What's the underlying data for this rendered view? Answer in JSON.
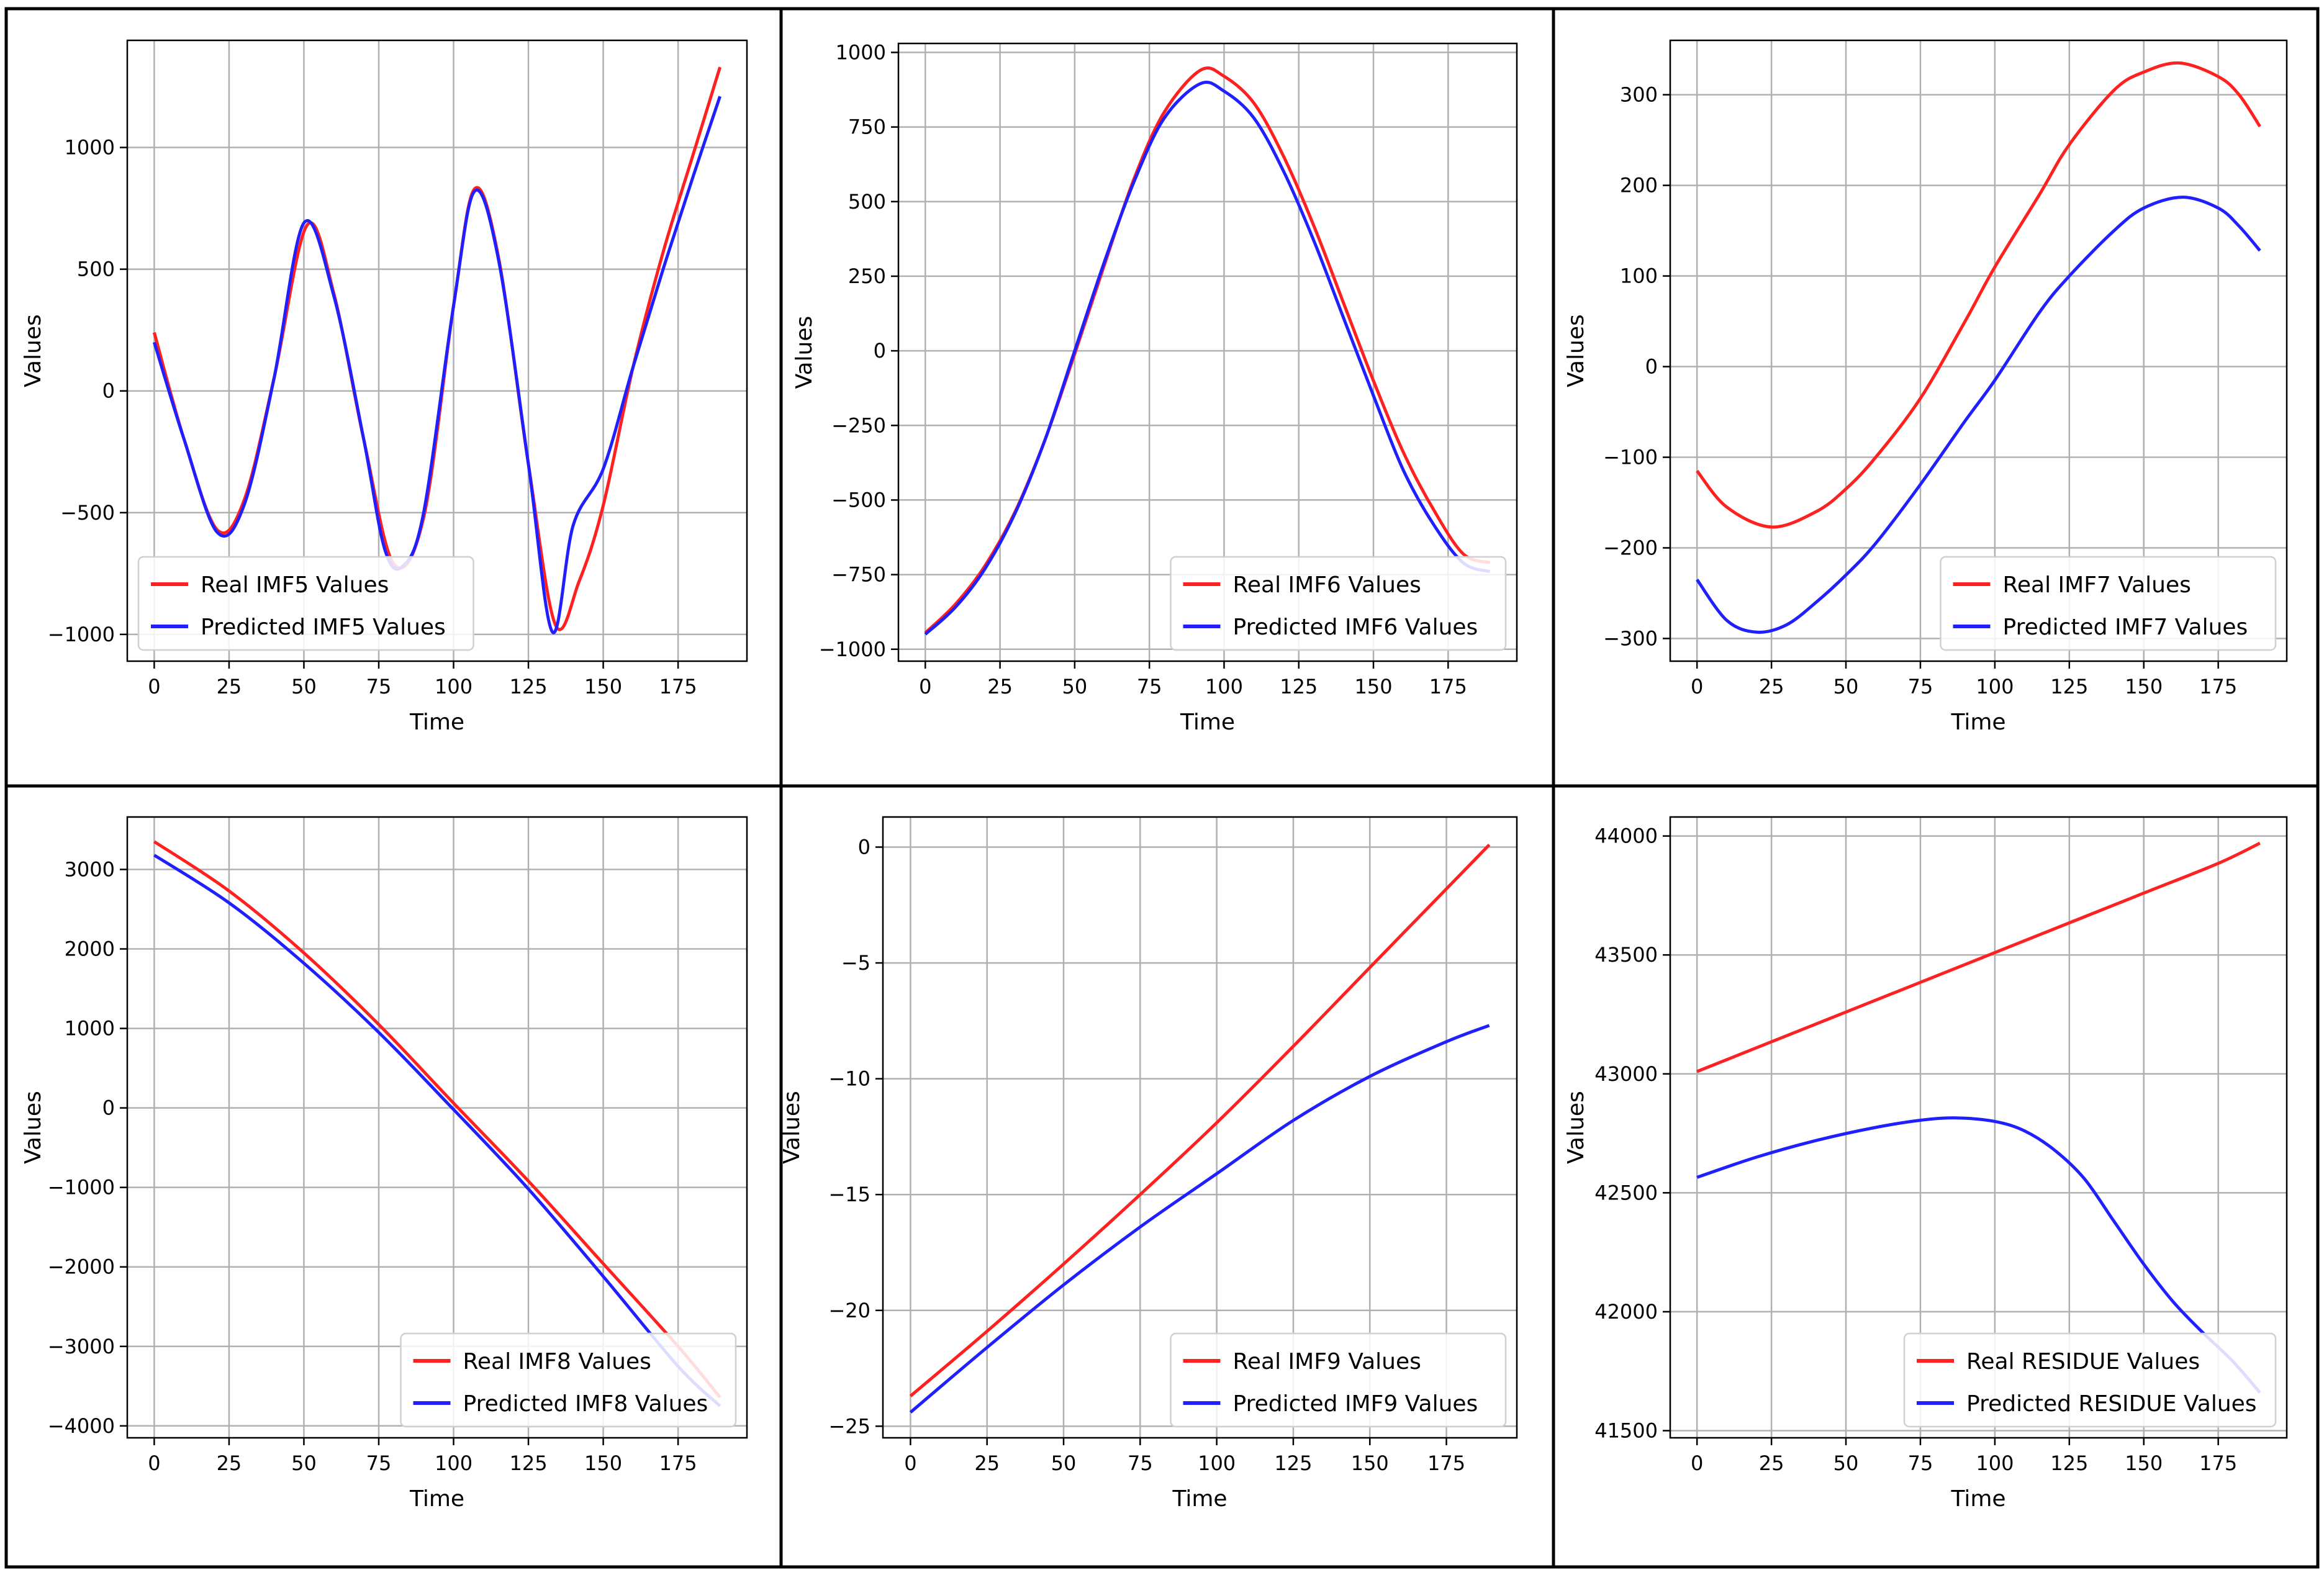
{
  "colors": {
    "real": "#ff2020",
    "predicted": "#2020ff",
    "grid": "#b0b0b0",
    "frame": "#000000"
  },
  "chart_data": [
    {
      "type": "line",
      "xlabel": "Time",
      "ylabel": "Values",
      "legend": "lower-left",
      "xlim": [
        -9,
        198
      ],
      "ylim": [
        -1110,
        1440
      ],
      "xticks": [
        0,
        25,
        50,
        75,
        100,
        125,
        150,
        175
      ],
      "yticks": [
        -1000,
        -500,
        0,
        500,
        1000
      ],
      "yticklabels": [
        "−1000",
        "−500",
        "0",
        "500",
        "1000"
      ],
      "series": [
        {
          "name": "Real IMF5 Values",
          "color": "#ff2020",
          "x": [
            0,
            10,
            21,
            30,
            40,
            51,
            60,
            70,
            80,
            90,
            100,
            107,
            115,
            125,
            134,
            142,
            150,
            160,
            170,
            180,
            189
          ],
          "y": [
            240,
            -200,
            -570,
            -450,
            50,
            680,
            400,
            -200,
            -710,
            -520,
            350,
            830,
            550,
            -300,
            -960,
            -780,
            -470,
            100,
            570,
            970,
            1330
          ]
        },
        {
          "name": "Predicted IMF5 Values",
          "color": "#2020ff",
          "x": [
            0,
            10,
            21,
            30,
            40,
            50,
            60,
            70,
            77,
            83,
            90,
            100,
            107,
            115,
            125,
            133,
            140,
            150,
            160,
            170,
            180,
            189
          ],
          "y": [
            200,
            -200,
            -580,
            -470,
            50,
            690,
            390,
            -200,
            -650,
            -720,
            -500,
            350,
            820,
            540,
            -300,
            -990,
            -550,
            -320,
            100,
            500,
            880,
            1210
          ]
        }
      ]
    },
    {
      "type": "line",
      "xlabel": "Time",
      "ylabel": "Values",
      "legend": "lower-right",
      "xlim": [
        -9,
        198
      ],
      "ylim": [
        -1040,
        1030
      ],
      "xticks": [
        0,
        25,
        50,
        75,
        100,
        125,
        150,
        175
      ],
      "yticks": [
        -1000,
        -750,
        -500,
        -250,
        0,
        250,
        500,
        750,
        1000
      ],
      "yticklabels": [
        "−1000",
        "−750",
        "−500",
        "−250",
        "0",
        "250",
        "500",
        "750",
        "1000"
      ],
      "series": [
        {
          "name": "Real IMF6 Values",
          "color": "#ff2020",
          "x": [
            0,
            10,
            20,
            30,
            40,
            50,
            60,
            70,
            80,
            92,
            100,
            110,
            120,
            130,
            140,
            150,
            160,
            170,
            180,
            189
          ],
          "y": [
            -945,
            -850,
            -720,
            -540,
            -300,
            -10,
            290,
            580,
            800,
            940,
            920,
            830,
            650,
            420,
            160,
            -100,
            -340,
            -530,
            -680,
            -710
          ]
        },
        {
          "name": "Predicted IMF6 Values",
          "color": "#2020ff",
          "x": [
            0,
            10,
            20,
            30,
            40,
            50,
            60,
            70,
            80,
            92,
            100,
            110,
            120,
            130,
            140,
            150,
            160,
            170,
            180,
            189
          ],
          "y": [
            -950,
            -860,
            -730,
            -545,
            -300,
            0,
            300,
            570,
            780,
            895,
            870,
            780,
            600,
            370,
            110,
            -150,
            -400,
            -580,
            -710,
            -740
          ]
        }
      ]
    },
    {
      "type": "line",
      "xlabel": "Time",
      "ylabel": "Values",
      "legend": "lower-right",
      "xlim": [
        -9,
        198
      ],
      "ylim": [
        -325,
        360
      ],
      "xticks": [
        0,
        25,
        50,
        75,
        100,
        125,
        150,
        175
      ],
      "yticks": [
        -300,
        -200,
        -100,
        0,
        100,
        200,
        300
      ],
      "yticklabels": [
        "−300",
        "−200",
        "−100",
        "0",
        "100",
        "200",
        "300"
      ],
      "series": [
        {
          "name": "Real IMF7 Values",
          "color": "#ff2020",
          "x": [
            0,
            10,
            25,
            40,
            50,
            60,
            75,
            90,
            100,
            115,
            125,
            140,
            150,
            162,
            175,
            182,
            189
          ],
          "y": [
            -115,
            -155,
            -177,
            -160,
            -135,
            -100,
            -35,
            50,
            110,
            190,
            245,
            305,
            325,
            335,
            320,
            300,
            265
          ]
        },
        {
          "name": "Predicted IMF7 Values",
          "color": "#2020ff",
          "x": [
            0,
            10,
            20,
            30,
            40,
            50,
            60,
            75,
            90,
            100,
            115,
            125,
            140,
            150,
            163,
            175,
            182,
            189
          ],
          "y": [
            -235,
            -280,
            -293,
            -285,
            -260,
            -230,
            -195,
            -130,
            -60,
            -15,
            60,
            100,
            150,
            175,
            187,
            175,
            155,
            128
          ]
        }
      ]
    },
    {
      "type": "line",
      "xlabel": "Time",
      "ylabel": "Values",
      "legend": "lower-right",
      "xlim": [
        -9,
        198
      ],
      "ylim": [
        -4150,
        3660
      ],
      "xticks": [
        0,
        25,
        50,
        75,
        100,
        125,
        150,
        175
      ],
      "yticks": [
        -4000,
        -3000,
        -2000,
        -1000,
        0,
        1000,
        2000,
        3000
      ],
      "yticklabels": [
        "−4000",
        "−3000",
        "−2000",
        "−1000",
        "0",
        "1000",
        "2000",
        "3000"
      ],
      "series": [
        {
          "name": "Real IMF8 Values",
          "color": "#ff2020",
          "x": [
            0,
            25,
            50,
            75,
            100,
            125,
            150,
            175,
            189
          ],
          "y": [
            3350,
            2730,
            1950,
            1050,
            60,
            -920,
            -1960,
            -3000,
            -3640
          ]
        },
        {
          "name": "Predicted IMF8 Values",
          "color": "#2020ff",
          "x": [
            0,
            25,
            50,
            75,
            100,
            125,
            150,
            175,
            189
          ],
          "y": [
            3180,
            2580,
            1820,
            950,
            -20,
            -1020,
            -2120,
            -3250,
            -3750
          ]
        }
      ]
    },
    {
      "type": "line",
      "xlabel": "Time",
      "ylabel": "Values",
      "legend": "lower-right",
      "xlim": [
        -9,
        198
      ],
      "ylim": [
        -25.5,
        1.3
      ],
      "xticks": [
        0,
        25,
        50,
        75,
        100,
        125,
        150,
        175
      ],
      "yticks": [
        -25,
        -20,
        -15,
        -10,
        -5,
        0
      ],
      "yticklabels": [
        "−25",
        "−20",
        "−15",
        "−10",
        "−5",
        "0"
      ],
      "series": [
        {
          "name": "Real IMF9 Values",
          "color": "#ff2020",
          "x": [
            0,
            25,
            50,
            75,
            100,
            125,
            150,
            175,
            189
          ],
          "y": [
            -23.7,
            -20.9,
            -18.0,
            -15.0,
            -11.9,
            -8.6,
            -5.2,
            -1.8,
            0.1
          ]
        },
        {
          "name": "Predicted IMF9 Values",
          "color": "#2020ff",
          "x": [
            0,
            25,
            50,
            75,
            100,
            125,
            150,
            175,
            189
          ],
          "y": [
            -24.4,
            -21.6,
            -18.9,
            -16.4,
            -14.1,
            -11.8,
            -9.9,
            -8.4,
            -7.7
          ]
        }
      ]
    },
    {
      "type": "line",
      "xlabel": "Time",
      "ylabel": "Values",
      "legend": "lower-right",
      "xlim": [
        -9,
        198
      ],
      "ylim": [
        41470,
        44080
      ],
      "xticks": [
        0,
        25,
        50,
        75,
        100,
        125,
        150,
        175
      ],
      "yticks": [
        41500,
        42000,
        42500,
        43000,
        43500,
        44000
      ],
      "yticklabels": [
        "41500",
        "42000",
        "42500",
        "43000",
        "43500",
        "44000"
      ],
      "series": [
        {
          "name": "Real RESIDUE Values",
          "color": "#ff2020",
          "x": [
            0,
            25,
            50,
            75,
            100,
            125,
            150,
            175,
            189
          ],
          "y": [
            43010,
            43135,
            43260,
            43385,
            43510,
            43635,
            43760,
            43885,
            43970
          ]
        },
        {
          "name": "Predicted RESIDUE Values",
          "color": "#2020ff",
          "x": [
            0,
            20,
            40,
            60,
            75,
            87,
            100,
            110,
            120,
            130,
            140,
            150,
            160,
            170,
            180,
            189
          ],
          "y": [
            42565,
            42650,
            42720,
            42775,
            42805,
            42815,
            42800,
            42760,
            42680,
            42560,
            42380,
            42200,
            42040,
            41910,
            41790,
            41660
          ]
        }
      ]
    }
  ]
}
